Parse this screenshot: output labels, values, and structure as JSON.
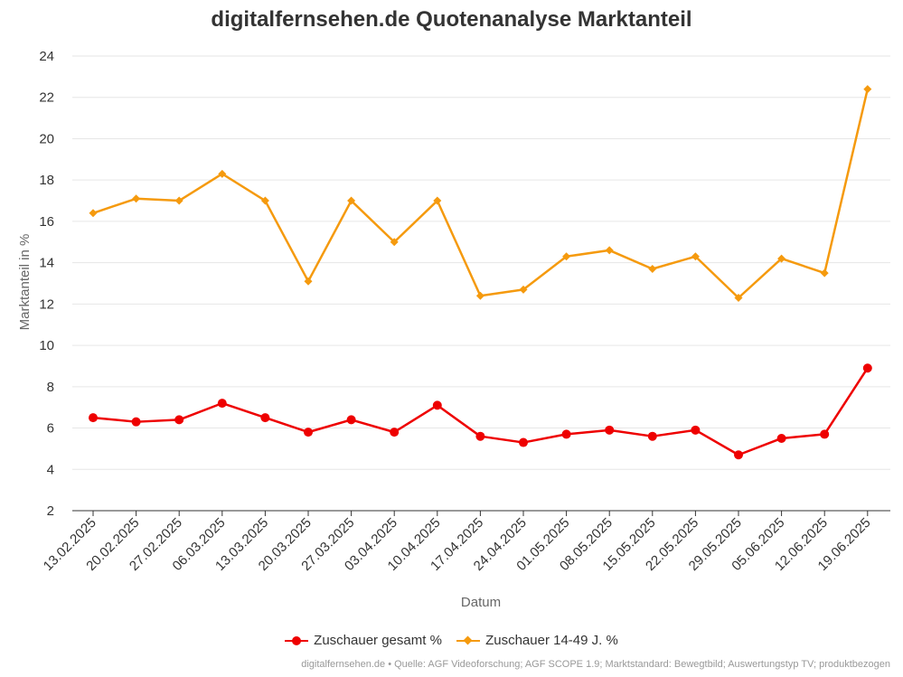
{
  "chart_data": {
    "type": "line",
    "title": "digitalfernsehen.de Quotenanalyse Marktanteil",
    "xlabel": "Datum",
    "ylabel": "Marktanteil in %",
    "ylim": [
      2,
      24
    ],
    "yticks": [
      2,
      4,
      6,
      8,
      10,
      12,
      14,
      16,
      18,
      20,
      22,
      24
    ],
    "grid": true,
    "legend_position": "bottom",
    "categories": [
      "13.02.2025",
      "20.02.2025",
      "27.02.2025",
      "06.03.2025",
      "13.03.2025",
      "20.03.2025",
      "27.03.2025",
      "03.04.2025",
      "10.04.2025",
      "17.04.2025",
      "24.04.2025",
      "01.05.2025",
      "08.05.2025",
      "15.05.2025",
      "22.05.2025",
      "29.05.2025",
      "05.06.2025",
      "12.06.2025",
      "19.06.2025"
    ],
    "series": [
      {
        "name": "Zuschauer gesamt %",
        "color": "#ee0000",
        "marker": "circle",
        "values": [
          6.5,
          6.3,
          6.4,
          7.2,
          6.5,
          5.8,
          6.4,
          5.8,
          7.1,
          5.6,
          5.3,
          5.7,
          5.9,
          5.6,
          5.9,
          4.7,
          5.5,
          5.7,
          8.9
        ]
      },
      {
        "name": "Zuschauer 14-49 J. %",
        "color": "#f59a0e",
        "marker": "diamond",
        "values": [
          16.4,
          17.1,
          17.0,
          18.3,
          17.0,
          13.1,
          17.0,
          15.0,
          17.0,
          12.4,
          12.7,
          14.3,
          14.6,
          13.7,
          14.3,
          12.3,
          14.2,
          13.5,
          22.4
        ]
      }
    ]
  },
  "source": "digitalfernsehen.de • Quelle: AGF Videoforschung; AGF SCOPE 1.9; Marktstandard: Bewegtbild; Auswertungstyp TV; produktbezogen"
}
